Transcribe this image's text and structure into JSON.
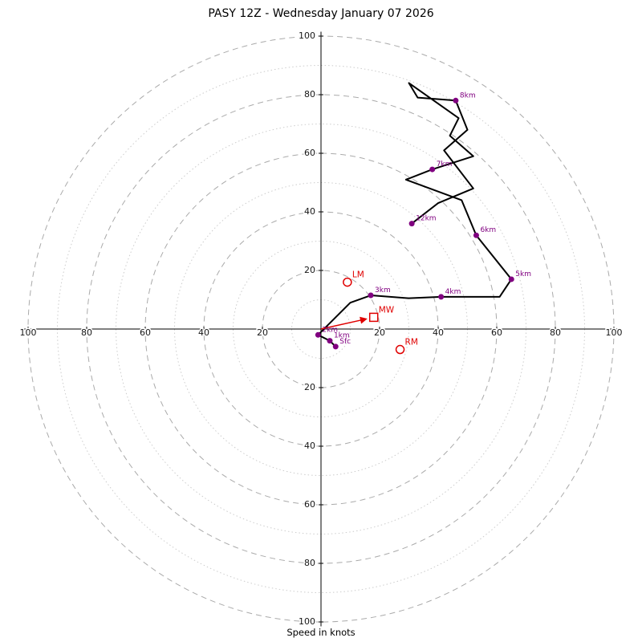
{
  "chart_data": {
    "type": "line",
    "subtype": "hodograph-polar",
    "title": "PASY 12Z - Wednesday January 07 2026",
    "xlabel": "Speed in knots",
    "axis": {
      "rings": [
        10,
        20,
        30,
        40,
        50,
        60,
        70,
        80,
        90,
        100
      ],
      "tick_labels": [
        20,
        40,
        60,
        80,
        100
      ],
      "rlim": [
        0,
        100
      ],
      "grid": true
    },
    "colors": {
      "trace": "#000000",
      "levels": "#800080",
      "storm": "#e00000",
      "grid_dashed": "#aaaaaa",
      "grid_dotted": "#cccccc",
      "axis_line": "#000000"
    },
    "units": "knots",
    "trace": [
      [
        5,
        -6
      ],
      [
        3,
        -4
      ],
      [
        -1,
        -2
      ],
      [
        2,
        1
      ],
      [
        10,
        9
      ],
      [
        17,
        11.5
      ],
      [
        30,
        10.5
      ],
      [
        41,
        11
      ],
      [
        61,
        11
      ],
      [
        65,
        17
      ],
      [
        53,
        32
      ],
      [
        48,
        44
      ],
      [
        29,
        51
      ],
      [
        38,
        54.5
      ],
      [
        52,
        59
      ],
      [
        44,
        66
      ],
      [
        47,
        72
      ],
      [
        30,
        84
      ],
      [
        33,
        79
      ],
      [
        46,
        78
      ],
      [
        50,
        68
      ],
      [
        42,
        61
      ],
      [
        52,
        48
      ],
      [
        40,
        43
      ],
      [
        31,
        36
      ]
    ],
    "levels": [
      {
        "label": "Sfc",
        "u": 5,
        "v": -6
      },
      {
        "label": "1km",
        "u": 3,
        "v": -4
      },
      {
        "label": "2km",
        "u": -1,
        "v": -2
      },
      {
        "label": "3km",
        "u": 17,
        "v": 11.5
      },
      {
        "label": "4km",
        "u": 41,
        "v": 11
      },
      {
        "label": "5km",
        "u": 65,
        "v": 17
      },
      {
        "label": "6km",
        "u": 53,
        "v": 32
      },
      {
        "label": "7km",
        "u": 38,
        "v": 54.5
      },
      {
        "label": "8km",
        "u": 46,
        "v": 78
      },
      {
        "label": "12km",
        "u": 31,
        "v": 36
      }
    ],
    "storm_motion": [
      {
        "label": "LM",
        "u": 9,
        "v": 16,
        "shape": "circle",
        "arrow_from_origin": false
      },
      {
        "label": "RM",
        "u": 27,
        "v": -7,
        "shape": "circle",
        "arrow_from_origin": false
      },
      {
        "label": "MW",
        "u": 18,
        "v": 4,
        "shape": "square",
        "arrow_from_origin": true
      }
    ]
  }
}
